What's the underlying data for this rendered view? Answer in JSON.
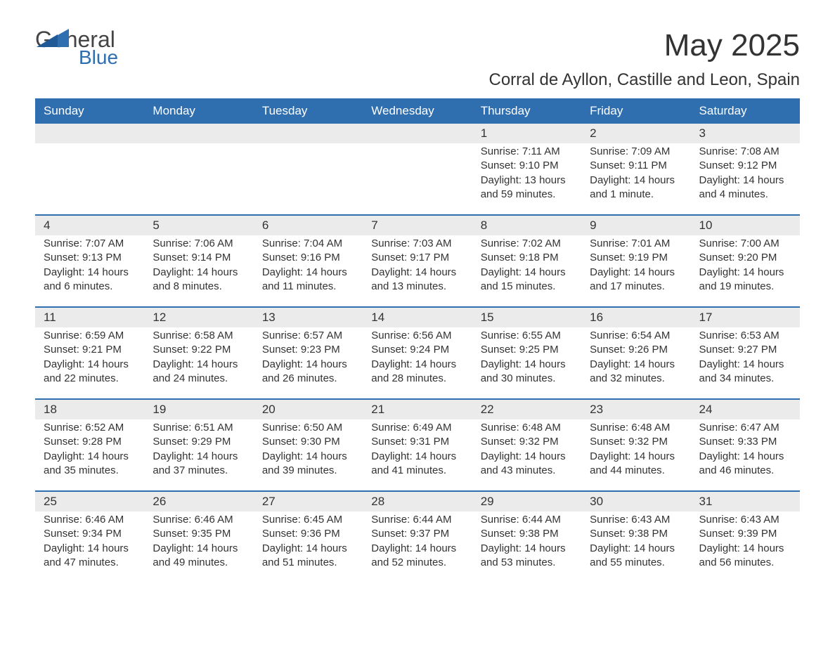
{
  "brand": {
    "general": "General",
    "blue": "Blue"
  },
  "title": "May 2025",
  "location": "Corral de Ayllon, Castille and Leon, Spain",
  "colors": {
    "header_bg": "#2f6fb0",
    "header_text": "#ffffff",
    "daynum_bg": "#ebebeb",
    "row_divider": "#2f6fb0",
    "text": "#333333",
    "background": "#ffffff"
  },
  "typography": {
    "title_fontsize": 44,
    "location_fontsize": 24,
    "header_fontsize": 17,
    "body_fontsize": 15
  },
  "day_headers": [
    "Sunday",
    "Monday",
    "Tuesday",
    "Wednesday",
    "Thursday",
    "Friday",
    "Saturday"
  ],
  "weeks": [
    [
      {
        "day": "",
        "sunrise": "",
        "sunset": "",
        "daylight": ""
      },
      {
        "day": "",
        "sunrise": "",
        "sunset": "",
        "daylight": ""
      },
      {
        "day": "",
        "sunrise": "",
        "sunset": "",
        "daylight": ""
      },
      {
        "day": "",
        "sunrise": "",
        "sunset": "",
        "daylight": ""
      },
      {
        "day": "1",
        "sunrise": "Sunrise: 7:11 AM",
        "sunset": "Sunset: 9:10 PM",
        "daylight": "Daylight: 13 hours and 59 minutes."
      },
      {
        "day": "2",
        "sunrise": "Sunrise: 7:09 AM",
        "sunset": "Sunset: 9:11 PM",
        "daylight": "Daylight: 14 hours and 1 minute."
      },
      {
        "day": "3",
        "sunrise": "Sunrise: 7:08 AM",
        "sunset": "Sunset: 9:12 PM",
        "daylight": "Daylight: 14 hours and 4 minutes."
      }
    ],
    [
      {
        "day": "4",
        "sunrise": "Sunrise: 7:07 AM",
        "sunset": "Sunset: 9:13 PM",
        "daylight": "Daylight: 14 hours and 6 minutes."
      },
      {
        "day": "5",
        "sunrise": "Sunrise: 7:06 AM",
        "sunset": "Sunset: 9:14 PM",
        "daylight": "Daylight: 14 hours and 8 minutes."
      },
      {
        "day": "6",
        "sunrise": "Sunrise: 7:04 AM",
        "sunset": "Sunset: 9:16 PM",
        "daylight": "Daylight: 14 hours and 11 minutes."
      },
      {
        "day": "7",
        "sunrise": "Sunrise: 7:03 AM",
        "sunset": "Sunset: 9:17 PM",
        "daylight": "Daylight: 14 hours and 13 minutes."
      },
      {
        "day": "8",
        "sunrise": "Sunrise: 7:02 AM",
        "sunset": "Sunset: 9:18 PM",
        "daylight": "Daylight: 14 hours and 15 minutes."
      },
      {
        "day": "9",
        "sunrise": "Sunrise: 7:01 AM",
        "sunset": "Sunset: 9:19 PM",
        "daylight": "Daylight: 14 hours and 17 minutes."
      },
      {
        "day": "10",
        "sunrise": "Sunrise: 7:00 AM",
        "sunset": "Sunset: 9:20 PM",
        "daylight": "Daylight: 14 hours and 19 minutes."
      }
    ],
    [
      {
        "day": "11",
        "sunrise": "Sunrise: 6:59 AM",
        "sunset": "Sunset: 9:21 PM",
        "daylight": "Daylight: 14 hours and 22 minutes."
      },
      {
        "day": "12",
        "sunrise": "Sunrise: 6:58 AM",
        "sunset": "Sunset: 9:22 PM",
        "daylight": "Daylight: 14 hours and 24 minutes."
      },
      {
        "day": "13",
        "sunrise": "Sunrise: 6:57 AM",
        "sunset": "Sunset: 9:23 PM",
        "daylight": "Daylight: 14 hours and 26 minutes."
      },
      {
        "day": "14",
        "sunrise": "Sunrise: 6:56 AM",
        "sunset": "Sunset: 9:24 PM",
        "daylight": "Daylight: 14 hours and 28 minutes."
      },
      {
        "day": "15",
        "sunrise": "Sunrise: 6:55 AM",
        "sunset": "Sunset: 9:25 PM",
        "daylight": "Daylight: 14 hours and 30 minutes."
      },
      {
        "day": "16",
        "sunrise": "Sunrise: 6:54 AM",
        "sunset": "Sunset: 9:26 PM",
        "daylight": "Daylight: 14 hours and 32 minutes."
      },
      {
        "day": "17",
        "sunrise": "Sunrise: 6:53 AM",
        "sunset": "Sunset: 9:27 PM",
        "daylight": "Daylight: 14 hours and 34 minutes."
      }
    ],
    [
      {
        "day": "18",
        "sunrise": "Sunrise: 6:52 AM",
        "sunset": "Sunset: 9:28 PM",
        "daylight": "Daylight: 14 hours and 35 minutes."
      },
      {
        "day": "19",
        "sunrise": "Sunrise: 6:51 AM",
        "sunset": "Sunset: 9:29 PM",
        "daylight": "Daylight: 14 hours and 37 minutes."
      },
      {
        "day": "20",
        "sunrise": "Sunrise: 6:50 AM",
        "sunset": "Sunset: 9:30 PM",
        "daylight": "Daylight: 14 hours and 39 minutes."
      },
      {
        "day": "21",
        "sunrise": "Sunrise: 6:49 AM",
        "sunset": "Sunset: 9:31 PM",
        "daylight": "Daylight: 14 hours and 41 minutes."
      },
      {
        "day": "22",
        "sunrise": "Sunrise: 6:48 AM",
        "sunset": "Sunset: 9:32 PM",
        "daylight": "Daylight: 14 hours and 43 minutes."
      },
      {
        "day": "23",
        "sunrise": "Sunrise: 6:48 AM",
        "sunset": "Sunset: 9:32 PM",
        "daylight": "Daylight: 14 hours and 44 minutes."
      },
      {
        "day": "24",
        "sunrise": "Sunrise: 6:47 AM",
        "sunset": "Sunset: 9:33 PM",
        "daylight": "Daylight: 14 hours and 46 minutes."
      }
    ],
    [
      {
        "day": "25",
        "sunrise": "Sunrise: 6:46 AM",
        "sunset": "Sunset: 9:34 PM",
        "daylight": "Daylight: 14 hours and 47 minutes."
      },
      {
        "day": "26",
        "sunrise": "Sunrise: 6:46 AM",
        "sunset": "Sunset: 9:35 PM",
        "daylight": "Daylight: 14 hours and 49 minutes."
      },
      {
        "day": "27",
        "sunrise": "Sunrise: 6:45 AM",
        "sunset": "Sunset: 9:36 PM",
        "daylight": "Daylight: 14 hours and 51 minutes."
      },
      {
        "day": "28",
        "sunrise": "Sunrise: 6:44 AM",
        "sunset": "Sunset: 9:37 PM",
        "daylight": "Daylight: 14 hours and 52 minutes."
      },
      {
        "day": "29",
        "sunrise": "Sunrise: 6:44 AM",
        "sunset": "Sunset: 9:38 PM",
        "daylight": "Daylight: 14 hours and 53 minutes."
      },
      {
        "day": "30",
        "sunrise": "Sunrise: 6:43 AM",
        "sunset": "Sunset: 9:38 PM",
        "daylight": "Daylight: 14 hours and 55 minutes."
      },
      {
        "day": "31",
        "sunrise": "Sunrise: 6:43 AM",
        "sunset": "Sunset: 9:39 PM",
        "daylight": "Daylight: 14 hours and 56 minutes."
      }
    ]
  ]
}
